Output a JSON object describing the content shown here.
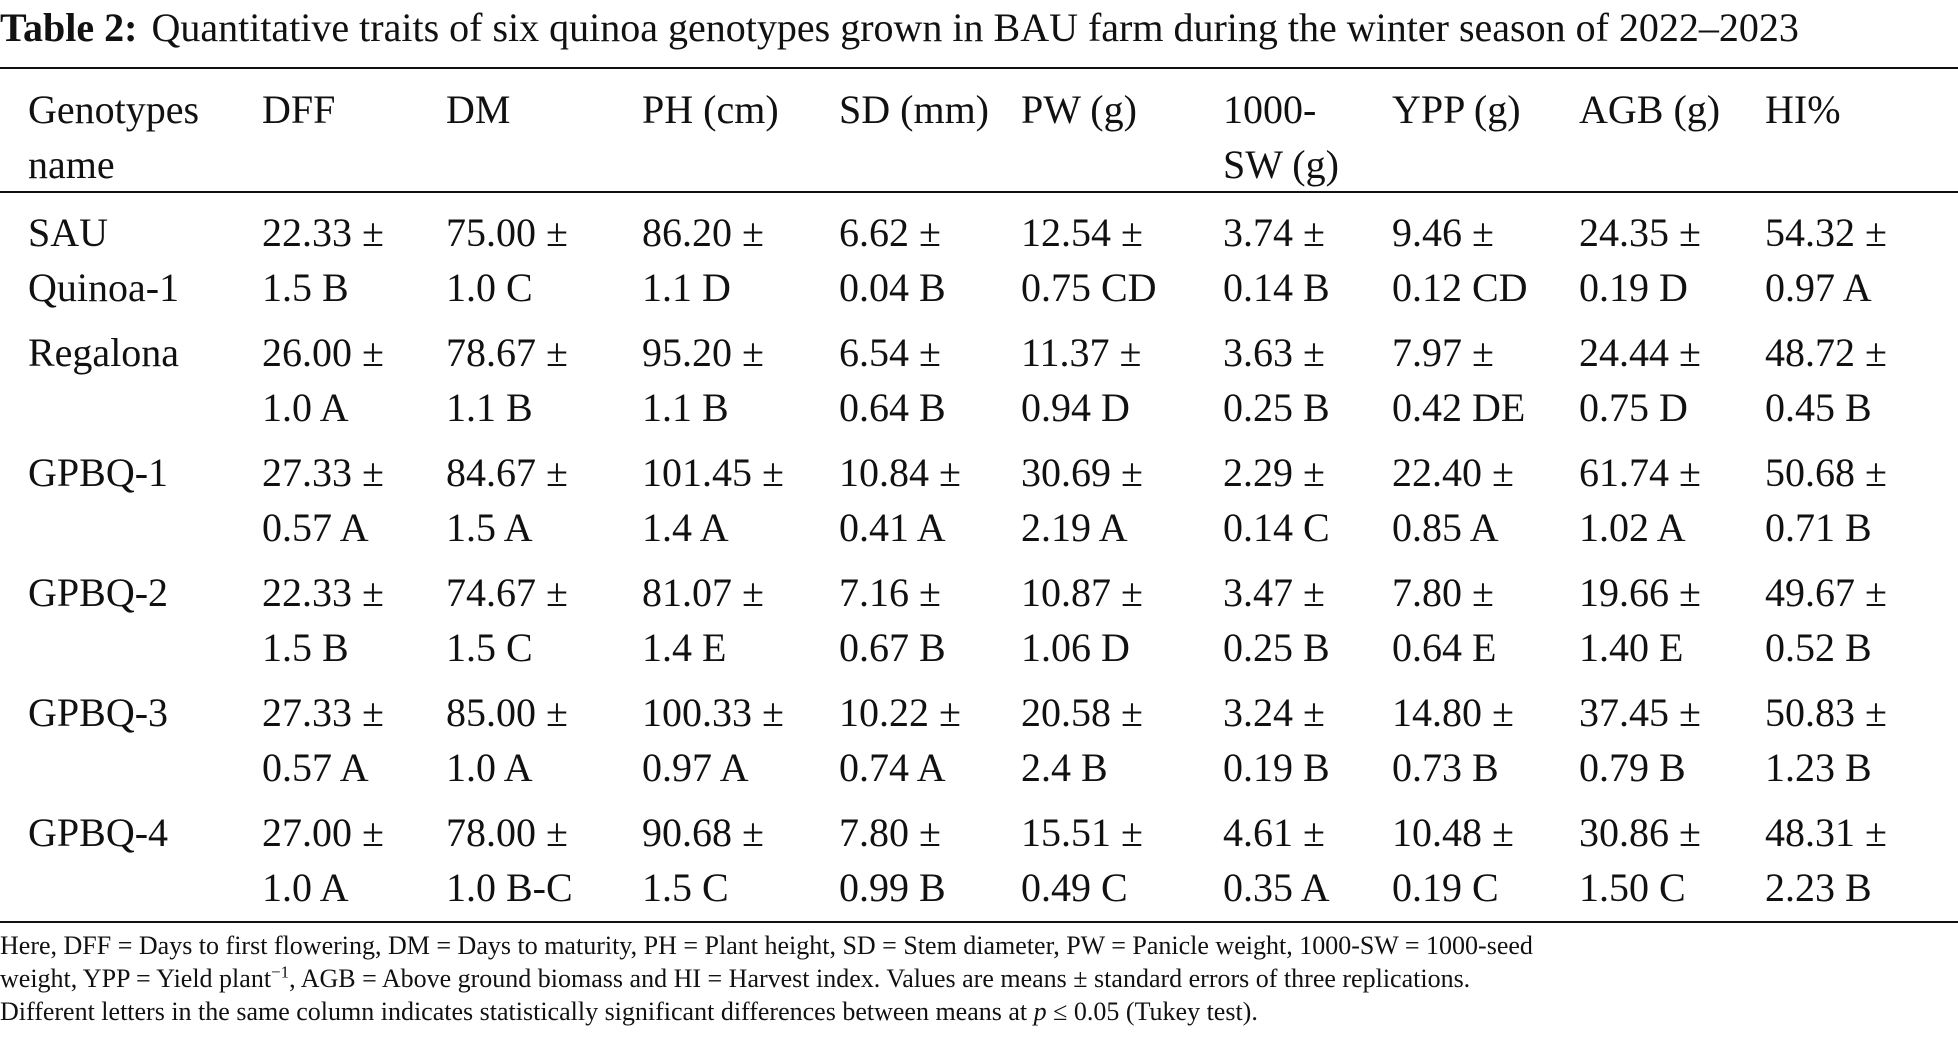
{
  "caption": {
    "label": "Table 2:",
    "text": "Quantitative traits of six quinoa genotypes grown in BAU farm during the winter season of 2022–2023"
  },
  "columns": [
    [
      "Genotypes",
      "name"
    ],
    [
      "DFF",
      ""
    ],
    [
      "DM",
      ""
    ],
    [
      "PH (cm)",
      ""
    ],
    [
      "SD (mm)",
      ""
    ],
    [
      "PW (g)",
      ""
    ],
    [
      "1000-",
      "SW (g)"
    ],
    [
      "YPP (g)",
      ""
    ],
    [
      "AGB (g)",
      ""
    ],
    [
      "HI%",
      ""
    ]
  ],
  "rows": [
    [
      [
        "SAU",
        "Quinoa-1"
      ],
      [
        "22.33 ±",
        "1.5 B"
      ],
      [
        "75.00 ±",
        "1.0 C"
      ],
      [
        "86.20 ±",
        "1.1 D"
      ],
      [
        "6.62 ±",
        "0.04 B"
      ],
      [
        "12.54 ±",
        "0.75 CD"
      ],
      [
        "3.74 ±",
        "0.14 B"
      ],
      [
        "9.46 ±",
        "0.12 CD"
      ],
      [
        "24.35 ±",
        "0.19 D"
      ],
      [
        "54.32 ±",
        "0.97 A"
      ]
    ],
    [
      [
        "Regalona",
        ""
      ],
      [
        "26.00 ±",
        "1.0 A"
      ],
      [
        "78.67 ±",
        "1.1 B"
      ],
      [
        "95.20 ±",
        "1.1 B"
      ],
      [
        "6.54 ±",
        "0.64 B"
      ],
      [
        "11.37 ±",
        "0.94 D"
      ],
      [
        "3.63 ±",
        "0.25 B"
      ],
      [
        "7.97 ±",
        "0.42 DE"
      ],
      [
        "24.44 ±",
        "0.75 D"
      ],
      [
        "48.72 ±",
        "0.45 B"
      ]
    ],
    [
      [
        "GPBQ-1",
        ""
      ],
      [
        "27.33 ±",
        "0.57 A"
      ],
      [
        "84.67 ±",
        "1.5 A"
      ],
      [
        "101.45 ±",
        "1.4 A"
      ],
      [
        "10.84 ±",
        "0.41 A"
      ],
      [
        "30.69 ±",
        "2.19 A"
      ],
      [
        "2.29 ±",
        "0.14 C"
      ],
      [
        "22.40 ±",
        "0.85 A"
      ],
      [
        "61.74 ±",
        "1.02 A"
      ],
      [
        "50.68 ±",
        "0.71 B"
      ]
    ],
    [
      [
        "GPBQ-2",
        ""
      ],
      [
        "22.33 ±",
        "1.5 B"
      ],
      [
        "74.67 ±",
        "1.5 C"
      ],
      [
        "81.07 ±",
        "1.4 E"
      ],
      [
        "7.16 ±",
        "0.67 B"
      ],
      [
        "10.87 ±",
        "1.06 D"
      ],
      [
        "3.47 ±",
        "0.25 B"
      ],
      [
        "7.80 ±",
        "0.64 E"
      ],
      [
        "19.66 ±",
        "1.40 E"
      ],
      [
        "49.67 ±",
        "0.52 B"
      ]
    ],
    [
      [
        "GPBQ-3",
        ""
      ],
      [
        "27.33 ±",
        "0.57 A"
      ],
      [
        "85.00 ±",
        "1.0 A"
      ],
      [
        "100.33 ±",
        "0.97 A"
      ],
      [
        "10.22 ±",
        "0.74 A"
      ],
      [
        "20.58 ±",
        "2.4 B"
      ],
      [
        "3.24 ±",
        "0.19 B"
      ],
      [
        "14.80 ±",
        "0.73 B"
      ],
      [
        "37.45 ±",
        "0.79 B"
      ],
      [
        "50.83 ±",
        "1.23 B"
      ]
    ],
    [
      [
        "GPBQ-4",
        ""
      ],
      [
        "27.00 ±",
        "1.0 A"
      ],
      [
        "78.00 ±",
        "1.0 B-C"
      ],
      [
        "90.68 ±",
        "1.5 C"
      ],
      [
        "7.80 ±",
        "0.99 B"
      ],
      [
        "15.51 ±",
        "0.49 C"
      ],
      [
        "4.61 ±",
        "0.35 A"
      ],
      [
        "10.48 ±",
        "0.19 C"
      ],
      [
        "30.86 ±",
        "1.50 C"
      ],
      [
        "48.31 ±",
        "2.23 B"
      ]
    ]
  ],
  "footnote": {
    "line1": "Here, DFF = Days to first flowering, DM = Days to maturity, PH = Plant height, SD = Stem diameter, PW = Panicle weight, 1000-SW = 1000-seed",
    "line2_a": "weight, YPP = Yield plant",
    "line2_sup": "−1",
    "line2_b": ", AGB = Above ground biomass and HI = Harvest index. Values are means ± standard errors of three replications.",
    "line3_a": "Different letters in the same column indicates statistically significant differences between means at ",
    "line3_p": "p",
    "line3_b": " ≤ 0.05 (Tukey test)."
  }
}
